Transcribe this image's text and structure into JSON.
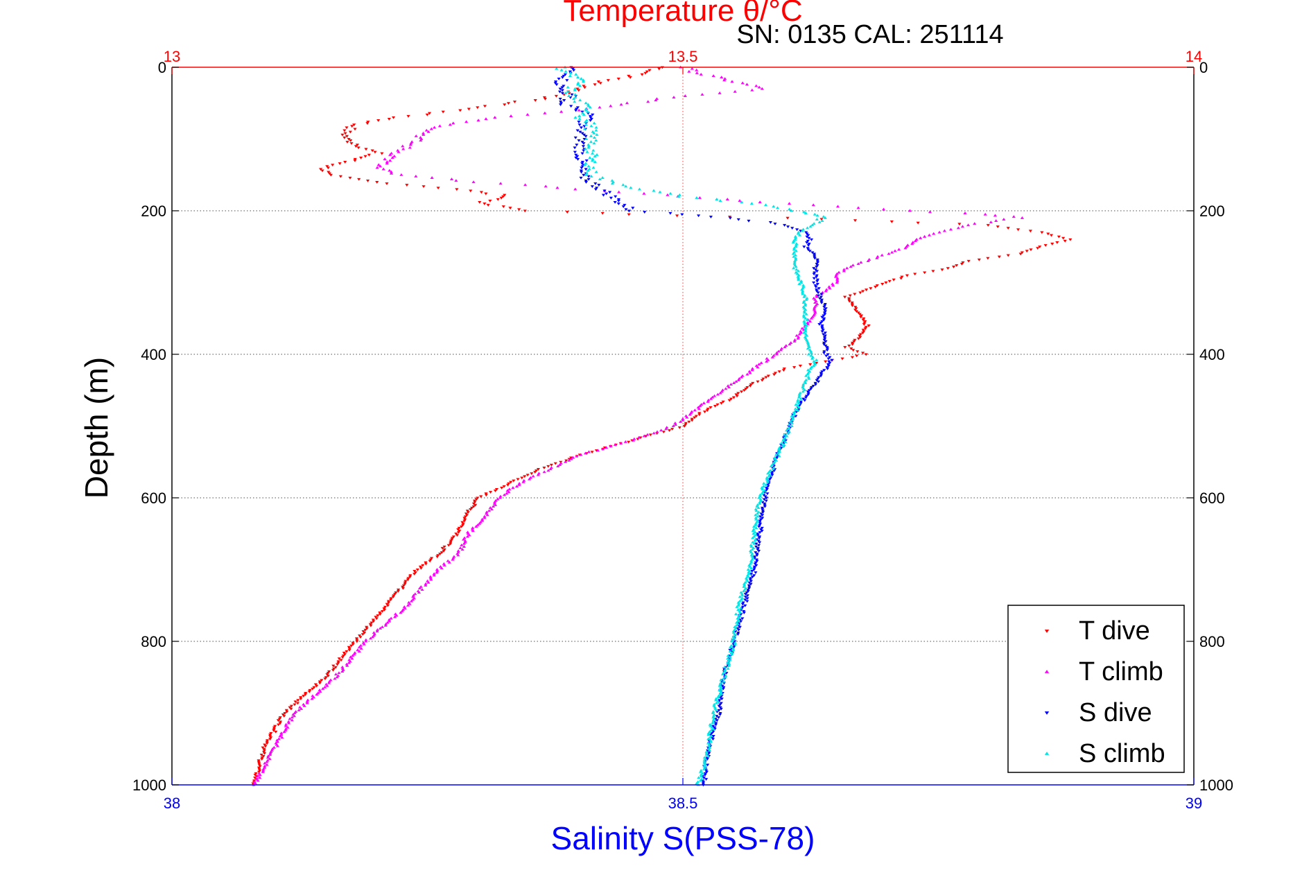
{
  "chart_data": {
    "type": "scatter",
    "title_top": "Temperature θ/°C",
    "subtitle": "SN: 0135  CAL: 251114",
    "xlabel": "Salinity S(PSS-78)",
    "ylabel": "Depth (m)",
    "x_bottom": {
      "label": "Salinity S(PSS-78)",
      "lim": [
        38,
        39
      ],
      "ticks": [
        "38",
        "38.5",
        "39"
      ],
      "color": "#0000ff"
    },
    "x_top": {
      "label": "Temperature θ/°C",
      "lim": [
        13,
        14
      ],
      "ticks": [
        "13",
        "13.5",
        "14"
      ],
      "color": "#ff0000"
    },
    "y": {
      "label": "Depth (m)",
      "lim": [
        0,
        1000
      ],
      "reversed": true,
      "ticks": [
        "0",
        "200",
        "400",
        "600",
        "800",
        "1000"
      ]
    },
    "grid": true,
    "legend": {
      "location": "bottom-right",
      "entries": [
        "T dive",
        "T climb",
        "S dive",
        "S climb"
      ]
    },
    "series": [
      {
        "name": "T dive",
        "axis": "top",
        "color": "#ff0000",
        "marker": "triangle-down",
        "depth": [
          0,
          10,
          20,
          30,
          40,
          50,
          60,
          70,
          80,
          90,
          100,
          120,
          140,
          150,
          160,
          170,
          180,
          190,
          200,
          205,
          210,
          215,
          220,
          230,
          240,
          250,
          260,
          270,
          280,
          290,
          300,
          320,
          340,
          360,
          380,
          390,
          400,
          410,
          420,
          440,
          460,
          480,
          500,
          520,
          540,
          560,
          580,
          600,
          620,
          650,
          680,
          700,
          750,
          800,
          850,
          900,
          950,
          1000
        ],
        "values": [
          13.48,
          13.46,
          13.42,
          13.4,
          13.38,
          13.33,
          13.28,
          13.22,
          13.18,
          13.17,
          13.17,
          13.2,
          13.15,
          13.15,
          13.2,
          13.28,
          13.33,
          13.3,
          13.35,
          13.45,
          13.6,
          13.7,
          13.8,
          13.85,
          13.88,
          13.85,
          13.83,
          13.78,
          13.76,
          13.72,
          13.7,
          13.66,
          13.67,
          13.68,
          13.67,
          13.66,
          13.68,
          13.64,
          13.6,
          13.57,
          13.55,
          13.52,
          13.5,
          13.45,
          13.4,
          13.36,
          13.33,
          13.3,
          13.29,
          13.28,
          13.26,
          13.24,
          13.21,
          13.18,
          13.15,
          13.11,
          13.09,
          13.08
        ]
      },
      {
        "name": "T climb",
        "axis": "top",
        "color": "#ff00ff",
        "marker": "triangle-up",
        "depth": [
          0,
          10,
          20,
          30,
          40,
          50,
          60,
          70,
          80,
          90,
          100,
          120,
          140,
          150,
          160,
          170,
          180,
          190,
          200,
          205,
          210,
          220,
          230,
          240,
          250,
          260,
          270,
          280,
          290,
          300,
          320,
          340,
          360,
          380,
          390,
          400,
          420,
          440,
          460,
          480,
          500,
          520,
          540,
          560,
          580,
          600,
          620,
          650,
          680,
          700,
          750,
          800,
          850,
          900,
          950,
          1000
        ],
        "values": [
          13.5,
          13.52,
          13.55,
          13.58,
          13.5,
          13.45,
          13.4,
          13.32,
          13.27,
          13.25,
          13.24,
          13.22,
          13.2,
          13.22,
          13.3,
          13.4,
          13.5,
          13.6,
          13.72,
          13.8,
          13.83,
          13.78,
          13.75,
          13.73,
          13.72,
          13.7,
          13.68,
          13.66,
          13.65,
          13.65,
          13.63,
          13.63,
          13.62,
          13.61,
          13.6,
          13.59,
          13.57,
          13.55,
          13.53,
          13.51,
          13.49,
          13.45,
          13.4,
          13.37,
          13.34,
          13.32,
          13.31,
          13.29,
          13.28,
          13.26,
          13.23,
          13.19,
          13.16,
          13.12,
          13.1,
          13.08
        ]
      },
      {
        "name": "S dive",
        "axis": "bottom",
        "color": "#0000ff",
        "marker": "triangle-down",
        "depth": [
          0,
          10,
          20,
          30,
          40,
          50,
          60,
          70,
          80,
          90,
          100,
          120,
          140,
          150,
          160,
          170,
          180,
          190,
          200,
          205,
          210,
          220,
          230,
          240,
          250,
          260,
          280,
          300,
          320,
          340,
          360,
          380,
          400,
          410,
          420,
          440,
          460,
          480,
          500,
          550,
          600,
          650,
          700,
          750,
          800,
          850,
          900,
          950,
          1000
        ],
        "values": [
          38.39,
          38.39,
          38.38,
          38.38,
          38.39,
          38.38,
          38.4,
          38.41,
          38.4,
          38.4,
          38.4,
          38.4,
          38.4,
          38.4,
          38.41,
          38.42,
          38.43,
          38.44,
          38.45,
          38.5,
          38.55,
          38.6,
          38.62,
          38.625,
          38.62,
          38.63,
          38.63,
          38.63,
          38.635,
          38.64,
          38.635,
          38.64,
          38.64,
          38.645,
          38.64,
          38.63,
          38.62,
          38.61,
          38.605,
          38.59,
          38.58,
          38.575,
          38.57,
          38.56,
          38.55,
          38.54,
          38.535,
          38.525,
          38.52
        ]
      },
      {
        "name": "S climb",
        "axis": "bottom",
        "color": "#00e5e5",
        "marker": "triangle-up",
        "depth": [
          0,
          10,
          20,
          30,
          40,
          50,
          60,
          70,
          80,
          90,
          100,
          120,
          140,
          150,
          160,
          170,
          180,
          190,
          200,
          205,
          210,
          220,
          230,
          240,
          250,
          260,
          280,
          300,
          320,
          340,
          360,
          380,
          400,
          410,
          420,
          440,
          460,
          480,
          500,
          550,
          600,
          650,
          700,
          750,
          800,
          850,
          900,
          950,
          1000
        ],
        "values": [
          38.38,
          38.39,
          38.4,
          38.39,
          38.39,
          38.4,
          38.41,
          38.4,
          38.41,
          38.41,
          38.41,
          38.41,
          38.41,
          38.41,
          38.43,
          38.46,
          38.5,
          38.57,
          38.61,
          38.63,
          38.635,
          38.625,
          38.615,
          38.61,
          38.61,
          38.61,
          38.61,
          38.615,
          38.62,
          38.62,
          38.62,
          38.62,
          38.625,
          38.63,
          38.625,
          38.62,
          38.615,
          38.61,
          38.605,
          38.59,
          38.575,
          38.57,
          38.565,
          38.555,
          38.55,
          38.54,
          38.53,
          38.525,
          38.515
        ]
      }
    ]
  }
}
